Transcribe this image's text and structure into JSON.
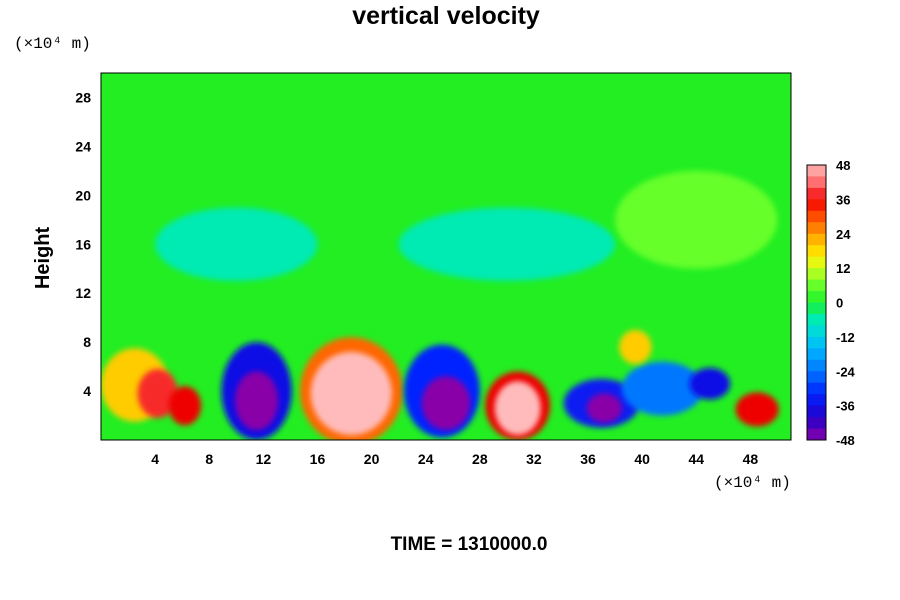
{
  "chart_data": {
    "type": "heatmap",
    "title": "vertical velocity",
    "ylabel": "Height",
    "x_unit_label": "(×10⁴ m)",
    "y_unit_label": "(×10⁴ m)",
    "x_ticks": [
      4,
      8,
      12,
      16,
      20,
      24,
      28,
      32,
      36,
      40,
      44,
      48
    ],
    "y_ticks": [
      4,
      8,
      12,
      16,
      20,
      24,
      28
    ],
    "xlim": [
      0,
      51
    ],
    "ylim": [
      0,
      30
    ],
    "colorbar": {
      "ticks": [
        48,
        36,
        24,
        12,
        0,
        -12,
        -24,
        -36,
        -48
      ],
      "range": [
        -48,
        48
      ],
      "step": 4
    },
    "background_value": 0,
    "features": [
      {
        "x": 2.5,
        "y": 4.5,
        "rx": 2.5,
        "ry": 3.0,
        "value": 20
      },
      {
        "x": 4.2,
        "y": 3.8,
        "rx": 1.5,
        "ry": 2.0,
        "value": 38
      },
      {
        "x": 6.2,
        "y": 2.8,
        "rx": 1.2,
        "ry": 1.6,
        "value": 36
      },
      {
        "x": 11.5,
        "y": 4.0,
        "rx": 2.6,
        "ry": 4.0,
        "value": -36
      },
      {
        "x": 11.5,
        "y": 3.2,
        "rx": 1.6,
        "ry": 2.4,
        "value": -48
      },
      {
        "x": 18.5,
        "y": 4.0,
        "rx": 3.8,
        "ry": 4.4,
        "value": 28
      },
      {
        "x": 18.5,
        "y": 3.8,
        "rx": 3.0,
        "ry": 3.4,
        "value": 48
      },
      {
        "x": 25.2,
        "y": 4.0,
        "rx": 2.8,
        "ry": 3.8,
        "value": -32
      },
      {
        "x": 25.5,
        "y": 3.0,
        "rx": 1.8,
        "ry": 2.2,
        "value": -48
      },
      {
        "x": 30.8,
        "y": 2.8,
        "rx": 2.4,
        "ry": 2.8,
        "value": 36
      },
      {
        "x": 30.8,
        "y": 2.6,
        "rx": 1.7,
        "ry": 2.2,
        "value": 48
      },
      {
        "x": 37.0,
        "y": 3.0,
        "rx": 2.8,
        "ry": 2.0,
        "value": -34
      },
      {
        "x": 37.2,
        "y": 2.6,
        "rx": 1.3,
        "ry": 1.2,
        "value": -48
      },
      {
        "x": 41.5,
        "y": 4.2,
        "rx": 3.0,
        "ry": 2.2,
        "value": -24
      },
      {
        "x": 45.0,
        "y": 4.6,
        "rx": 1.5,
        "ry": 1.3,
        "value": -36
      },
      {
        "x": 48.5,
        "y": 2.5,
        "rx": 1.6,
        "ry": 1.4,
        "value": 36
      },
      {
        "x": 39.5,
        "y": 7.6,
        "rx": 1.2,
        "ry": 1.4,
        "value": 20
      },
      {
        "x": 44.0,
        "y": 18.0,
        "rx": 6.0,
        "ry": 4.0,
        "value": 6
      },
      {
        "x": 10.0,
        "y": 16.0,
        "rx": 6.0,
        "ry": 3.0,
        "value": -6
      },
      {
        "x": 30.0,
        "y": 16.0,
        "rx": 8.0,
        "ry": 3.0,
        "value": -6
      }
    ]
  },
  "footer": {
    "time_label": "TIME = 1310000.0"
  }
}
